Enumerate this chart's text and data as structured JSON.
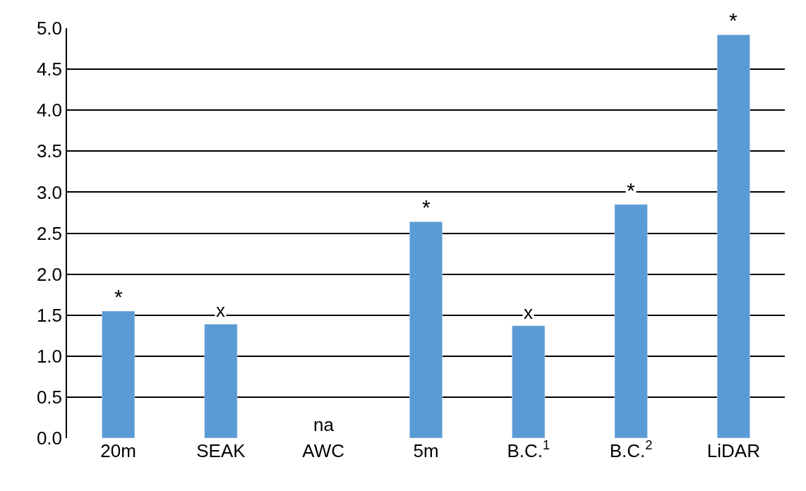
{
  "chart_data": {
    "type": "bar",
    "categories": [
      "20m",
      "SEAK",
      "AWC",
      "5m",
      "B.C.$^{1}$",
      "B.C.$^{2}$",
      "LiDAR"
    ],
    "values": [
      1.55,
      1.39,
      null,
      2.64,
      1.37,
      2.85,
      4.92
    ],
    "value_labels": [
      "*",
      "x",
      "na",
      "*",
      "x",
      "*",
      "*"
    ],
    "color": "#5b9bd5",
    "ylim": [
      0,
      5
    ],
    "yticks": [
      {
        "value": 0,
        "label": "0.0"
      },
      {
        "value": 0.5,
        "label": "0.5"
      },
      {
        "value": 1,
        "label": "1.0"
      },
      {
        "value": 1.5,
        "label": "1.5"
      },
      {
        "value": 2,
        "label": "2.0"
      },
      {
        "value": 2.5,
        "label": "2.5"
      },
      {
        "value": 3,
        "label": "3.0"
      },
      {
        "value": 3.5,
        "label": "3.5"
      },
      {
        "value": 4,
        "label": "4.0"
      },
      {
        "value": 4.5,
        "label": "4.5"
      },
      {
        "value": 5,
        "label": "5.0"
      }
    ],
    "grid": "y"
  }
}
